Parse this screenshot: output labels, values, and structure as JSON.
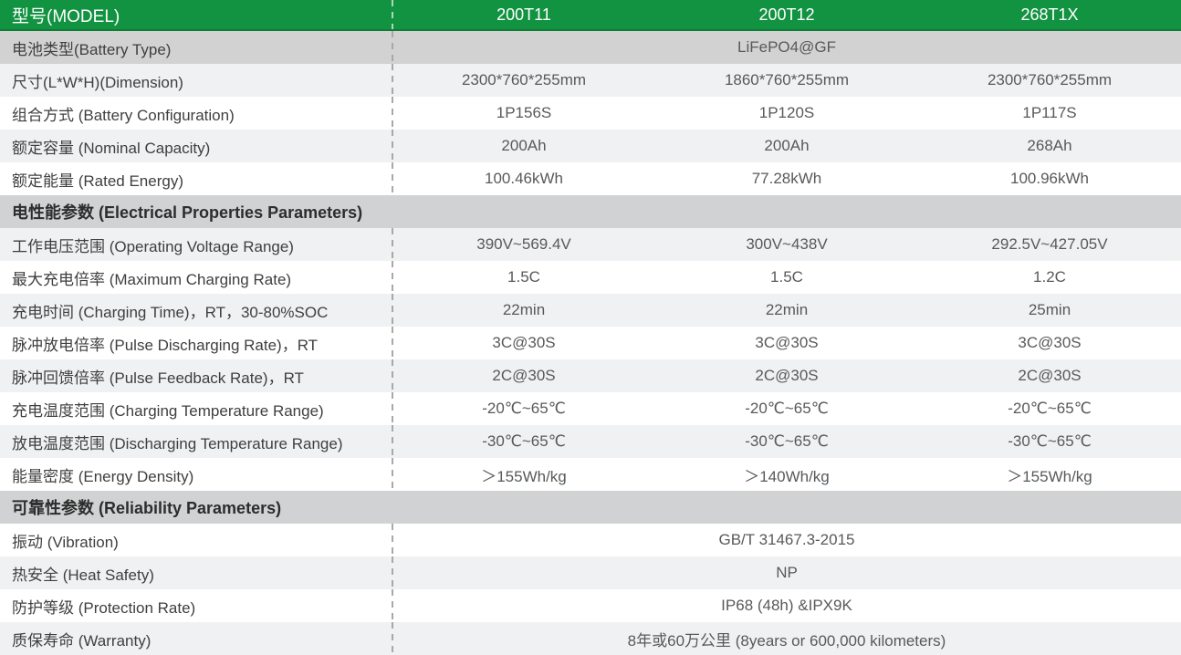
{
  "colors": {
    "header_green": "#119341",
    "section_gray": "#d1d2d3",
    "row_gray": "#d2d2d2",
    "row_alt": "#eff1f2",
    "row_white": "#ffffff",
    "label_text": "#3f3f3f",
    "value_text": "#58595b",
    "dash_line": "#a8a8a8"
  },
  "table": {
    "header": {
      "label": "型号(MODEL)",
      "models": [
        "200T11",
        "200T12",
        "268T1X"
      ]
    },
    "rows": [
      {
        "type": "span",
        "bg": "gray",
        "label": "电池类型(Battery Type)",
        "value": "LiFePO4@GF"
      },
      {
        "type": "cols",
        "bg": "alt",
        "label": "尺寸(L*W*H)(Dimension)",
        "values": [
          "2300*760*255mm",
          "1860*760*255mm",
          "2300*760*255mm"
        ]
      },
      {
        "type": "cols",
        "bg": "white",
        "label": "组合方式 (Battery Configuration)",
        "values": [
          "1P156S",
          "1P120S",
          "1P117S"
        ]
      },
      {
        "type": "cols",
        "bg": "alt",
        "label": "额定容量 (Nominal Capacity)",
        "values": [
          "200Ah",
          "200Ah",
          "268Ah"
        ]
      },
      {
        "type": "cols",
        "bg": "white",
        "label": "额定能量 (Rated Energy)",
        "values": [
          "100.46kWh",
          "77.28kWh",
          "100.96kWh"
        ]
      },
      {
        "type": "section",
        "label": "电性能参数 (Electrical Properties Parameters)"
      },
      {
        "type": "cols",
        "bg": "alt",
        "label": "工作电压范围 (Operating Voltage Range)",
        "values": [
          "390V~569.4V",
          "300V~438V",
          "292.5V~427.05V"
        ]
      },
      {
        "type": "cols",
        "bg": "white",
        "label": "最大充电倍率 (Maximum Charging Rate)",
        "values": [
          "1.5C",
          "1.5C",
          "1.2C"
        ]
      },
      {
        "type": "cols",
        "bg": "alt",
        "label": "充电时间 (Charging Time)，RT，30-80%SOC",
        "values": [
          "22min",
          "22min",
          "25min"
        ]
      },
      {
        "type": "cols",
        "bg": "white",
        "label": "脉冲放电倍率 (Pulse Discharging Rate)，RT",
        "values": [
          "3C@30S",
          "3C@30S",
          "3C@30S"
        ]
      },
      {
        "type": "cols",
        "bg": "alt",
        "label": "脉冲回馈倍率 (Pulse Feedback Rate)，RT",
        "values": [
          "2C@30S",
          "2C@30S",
          "2C@30S"
        ]
      },
      {
        "type": "cols",
        "bg": "white",
        "label": "充电温度范围 (Charging Temperature Range)",
        "values": [
          "-20℃~65℃",
          "-20℃~65℃",
          "-20℃~65℃"
        ]
      },
      {
        "type": "cols",
        "bg": "alt",
        "label": "放电温度范围 (Discharging Temperature Range)",
        "values": [
          "-30℃~65℃",
          "-30℃~65℃",
          "-30℃~65℃"
        ]
      },
      {
        "type": "cols",
        "bg": "white",
        "label": "能量密度 (Energy Density)",
        "values": [
          "＞155Wh/kg",
          "＞140Wh/kg",
          "＞155Wh/kg"
        ]
      },
      {
        "type": "section",
        "label": "可靠性参数 (Reliability Parameters)"
      },
      {
        "type": "span",
        "bg": "white",
        "label": "振动 (Vibration)",
        "value": "GB/T 31467.3-2015"
      },
      {
        "type": "span",
        "bg": "alt",
        "label": "热安全 (Heat Safety)",
        "value": "NP"
      },
      {
        "type": "span",
        "bg": "white",
        "label": "防护等级 (Protection Rate)",
        "value": "IP68 (48h) &IPX9K"
      },
      {
        "type": "span",
        "bg": "alt",
        "label": "质保寿命 (Warranty)",
        "value": "8年或60万公里 (8years or 600,000 kilometers)"
      }
    ]
  }
}
